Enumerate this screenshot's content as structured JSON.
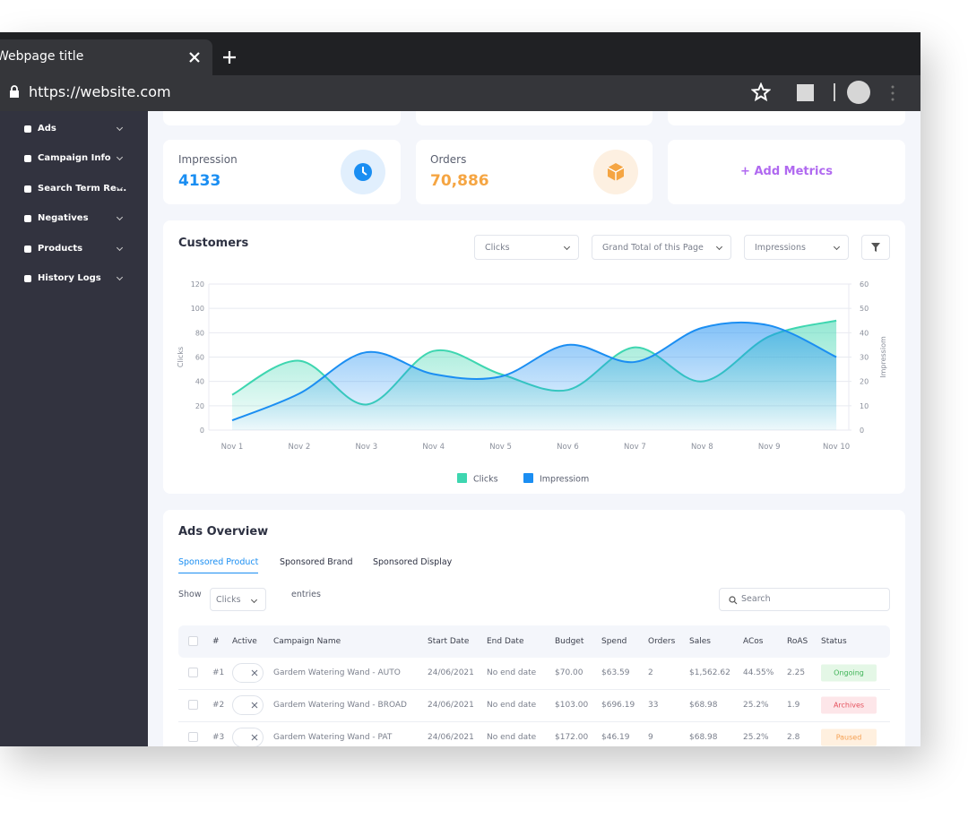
{
  "browser": {
    "tab_title": "Webpage title",
    "url": "https://website.com"
  },
  "sidebar": {
    "items": [
      "Ads",
      "Campaign Info",
      "Search Term Re...",
      "Negatives",
      "Products",
      "History Logs"
    ]
  },
  "metrics": [
    {
      "label": "Impression",
      "value": "4133"
    },
    {
      "label": "Orders",
      "value": "70,886"
    }
  ],
  "add_metrics": "+ Add Metrics",
  "chart_panel": {
    "filters": [
      "Clicks",
      "Grand Total of this Page",
      "Impressions"
    ]
  },
  "chart_data": {
    "type": "line",
    "title": "Customers",
    "categories": [
      "Nov 1",
      "Nov 2",
      "Nov 3",
      "Nov 4",
      "Nov 5",
      "Nov 6",
      "Nov 7",
      "Nov 8",
      "Nov 9",
      "Nov 10"
    ],
    "ylabel": "Clicks",
    "y2label": "Impressiom",
    "ylim": [
      0,
      120
    ],
    "yticks": [
      0,
      20,
      40,
      60,
      80,
      100,
      120
    ],
    "y2lim": [
      0,
      60
    ],
    "y2ticks": [
      0,
      10,
      20,
      30,
      40,
      50,
      60
    ],
    "grid": true,
    "legend": "bottom",
    "series": [
      {
        "name": "Clicks",
        "color": "#3ed6b0",
        "values": [
          29,
          57,
          21,
          65,
          46,
          33,
          68,
          40,
          77,
          90
        ]
      },
      {
        "name": "Impressiom",
        "color": "#1b8ef2",
        "axis": "y2",
        "values": [
          4,
          15,
          32,
          23,
          22,
          35,
          28,
          42,
          43,
          30
        ]
      }
    ]
  },
  "ads_overview": {
    "title": "Ads Overview",
    "tabs": [
      "Sponsored Product",
      "Sponsored Brand",
      "Sponsored Display"
    ],
    "show": "Show",
    "show_select": "Clicks",
    "entries": "entries",
    "search_placeholder": "Search",
    "columns": [
      "#",
      "Active",
      "Campaign Name",
      "Start Date",
      "End Date",
      "Budget",
      "Spend",
      "Orders",
      "Sales",
      "ACos",
      "RoAS",
      "Status"
    ],
    "rows": [
      [
        "#1",
        "Gardem Watering Wand - AUTO",
        "24/06/2021",
        "No end date",
        "$70.00",
        "$63.59",
        "2",
        "$1,562.62",
        "44.55%",
        "2.25",
        "Ongoing"
      ],
      [
        "#2",
        "Gardem Watering Wand - BROAD",
        "24/06/2021",
        "No end date",
        "$103.00",
        "$696.19",
        "33",
        "$68.98",
        "25.2%",
        "1.9",
        "Archives"
      ],
      [
        "#3",
        "Gardem Watering Wand - PAT",
        "24/06/2021",
        "No end date",
        "$172.00",
        "$46.19",
        "9",
        "$68.98",
        "25.2%",
        "2.8",
        "Paused"
      ]
    ]
  }
}
